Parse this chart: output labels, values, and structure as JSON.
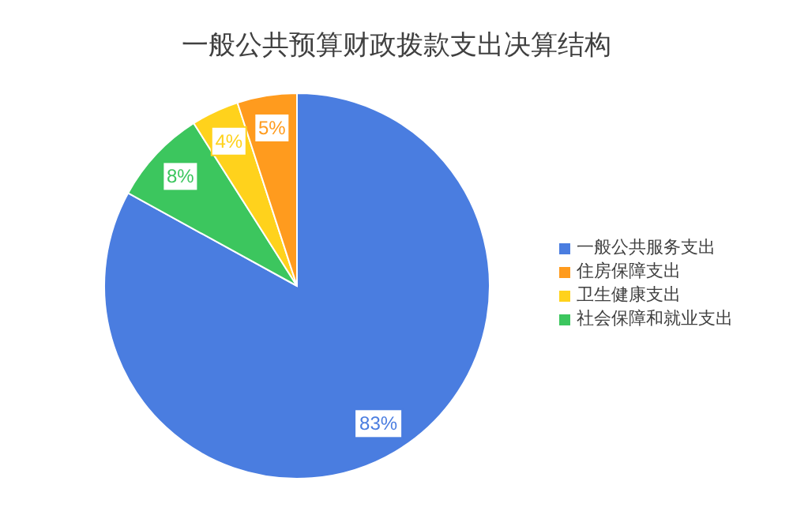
{
  "chart_data": {
    "type": "pie",
    "title": "一般公共预算财政拨款支出决算结构",
    "categories": [
      "一般公共服务支出",
      "社会保障和就业支出",
      "卫生健康支出",
      "住房保障支出"
    ],
    "values": [
      83,
      8,
      4,
      5
    ],
    "colors": [
      "#4a7de0",
      "#3cc65e",
      "#ffd21c",
      "#ff9b1e"
    ],
    "value_labels": [
      "83%",
      "8%",
      "4%",
      "5%"
    ],
    "legend": "right"
  }
}
